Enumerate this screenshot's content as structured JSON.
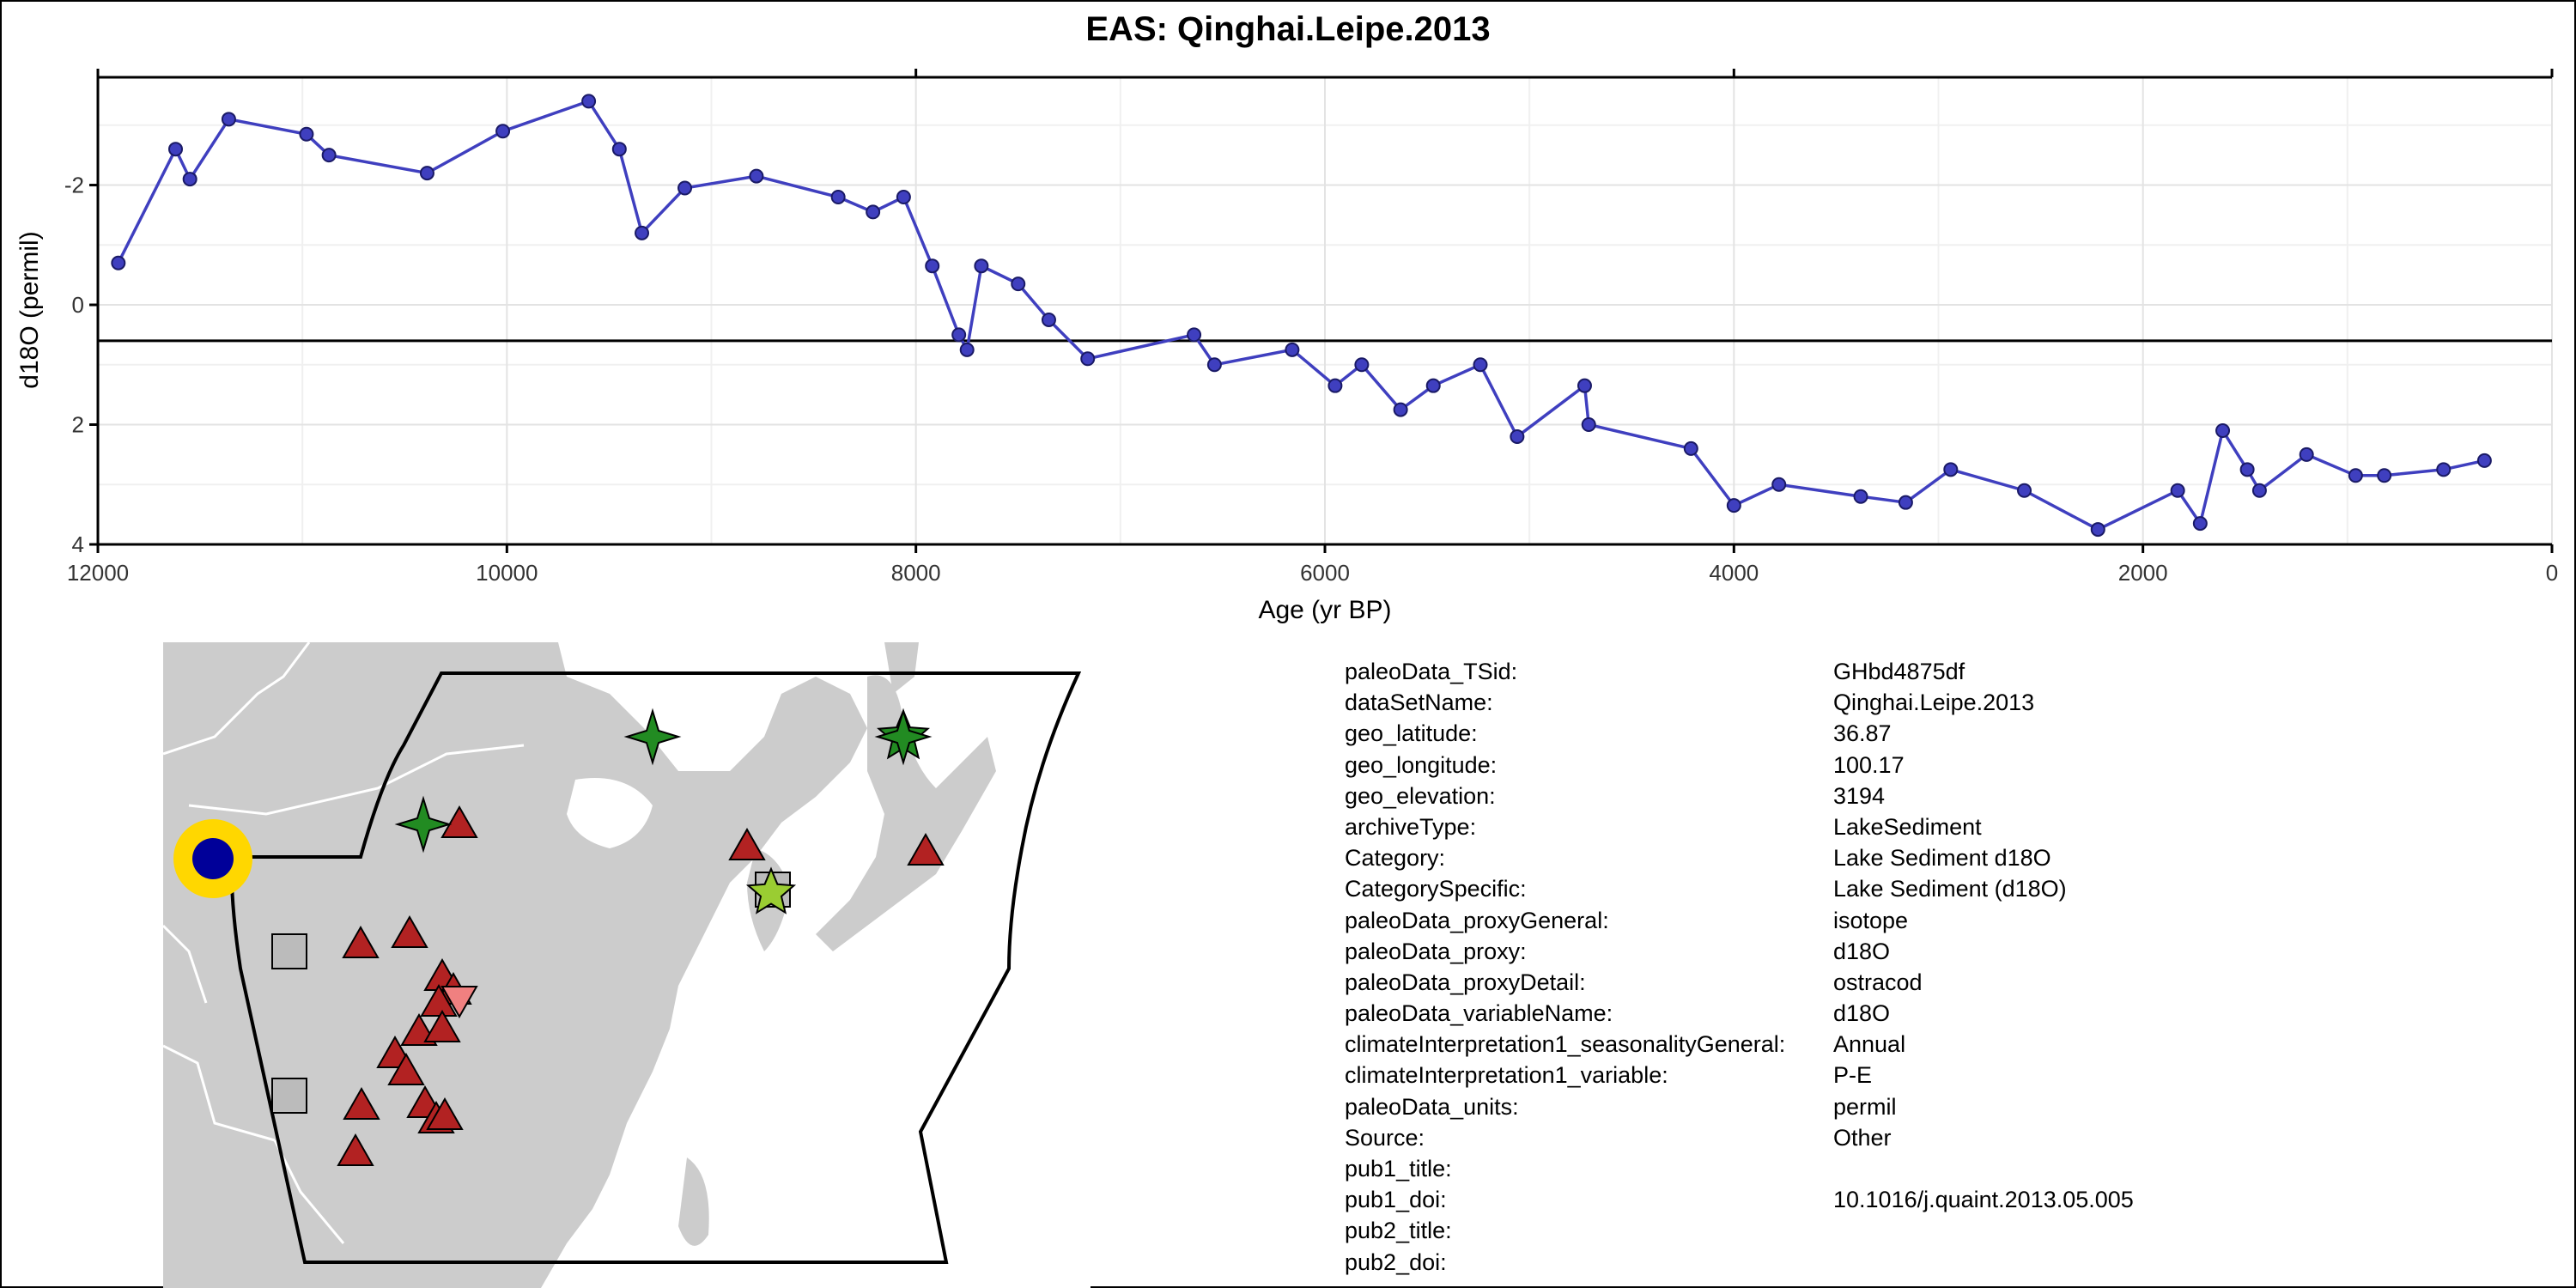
{
  "chart_data": {
    "type": "line",
    "title": "EAS: Qinghai.Leipe.2013",
    "xlabel": "Age (yr BP)",
    "ylabel": "d18O (permil)",
    "xlim": [
      12000,
      0
    ],
    "ylim": [
      4,
      -3.8
    ],
    "y_reversed": true,
    "x_ticks": [
      12000,
      10000,
      8000,
      6000,
      4000,
      2000,
      0
    ],
    "y_ticks": [
      -2,
      0,
      2,
      4
    ],
    "y_tick_labels": [
      "-2",
      "0",
      "2",
      "4"
    ],
    "grid": true,
    "reference_line_y": 0.6,
    "line_color": "#3f3fbf",
    "point_color": "#3f3fbf",
    "x": [
      11900,
      11620,
      11550,
      11360,
      10980,
      10870,
      10390,
      10020,
      9600,
      9450,
      9340,
      9130,
      8780,
      8380,
      8210,
      8060,
      7920,
      7790,
      7750,
      7680,
      7500,
      7350,
      7160,
      6640,
      6540,
      6160,
      5950,
      5820,
      5630,
      5470,
      5240,
      5060,
      4730,
      4710,
      4210,
      4000,
      3780,
      3380,
      3160,
      2940,
      2580,
      2220,
      1830,
      1720,
      1610,
      1490,
      1430,
      1200,
      960,
      820,
      530,
      330
    ],
    "y": [
      -0.7,
      -2.6,
      -2.1,
      -3.1,
      -2.85,
      -2.5,
      -2.2,
      -2.9,
      -3.4,
      -2.6,
      -1.2,
      -1.95,
      -2.15,
      -1.8,
      -1.55,
      -1.8,
      -0.65,
      0.5,
      0.75,
      -0.65,
      -0.35,
      0.25,
      0.9,
      0.5,
      1.0,
      0.75,
      1.35,
      1.0,
      1.75,
      1.35,
      1.0,
      2.2,
      1.35,
      2.0,
      2.4,
      3.35,
      3.0,
      3.2,
      3.3,
      2.75,
      3.1,
      3.75,
      3.1,
      3.65,
      2.1,
      2.75,
      3.1,
      2.5,
      2.85,
      2.85,
      2.75,
      2.6
    ]
  },
  "map": {
    "land_color": "#cccccc",
    "border_color": "#ffffff",
    "region_outline_color": "#000000",
    "site_marker": {
      "outer_color": "#ffd700",
      "inner_color": "#000099"
    },
    "marker_colors": {
      "lake_sediment": "#b22222",
      "lake_sediment_light": "#f08080",
      "speleothem": "#228b22",
      "speleothem_light": "#9acd32",
      "other": "#bbbbbb"
    }
  },
  "metadata": [
    {
      "key": "paleoData_TSid:",
      "value": "GHbd4875df"
    },
    {
      "key": "dataSetName:",
      "value": "Qinghai.Leipe.2013"
    },
    {
      "key": "geo_latitude:",
      "value": "36.87"
    },
    {
      "key": "geo_longitude:",
      "value": "100.17"
    },
    {
      "key": "geo_elevation:",
      "value": "3194"
    },
    {
      "key": "archiveType:",
      "value": "LakeSediment"
    },
    {
      "key": "Category:",
      "value": "Lake Sediment d18O"
    },
    {
      "key": "CategorySpecific:",
      "value": "Lake Sediment (d18O)"
    },
    {
      "key": "paleoData_proxyGeneral:",
      "value": "isotope"
    },
    {
      "key": "paleoData_proxy:",
      "value": "d18O"
    },
    {
      "key": "paleoData_proxyDetail:",
      "value": "ostracod"
    },
    {
      "key": "paleoData_variableName:",
      "value": "d18O"
    },
    {
      "key": "climateInterpretation1_seasonalityGeneral:",
      "value": "Annual"
    },
    {
      "key": "climateInterpretation1_variable:",
      "value": "P-E"
    },
    {
      "key": "paleoData_units:",
      "value": "permil"
    },
    {
      "key": "Source:",
      "value": "Other"
    },
    {
      "key": "pub1_title:",
      "value": ""
    },
    {
      "key": "pub1_doi:",
      "value": "10.1016/j.quaint.2013.05.005"
    },
    {
      "key": "pub2_title:",
      "value": ""
    },
    {
      "key": "pub2_doi:",
      "value": ""
    }
  ]
}
